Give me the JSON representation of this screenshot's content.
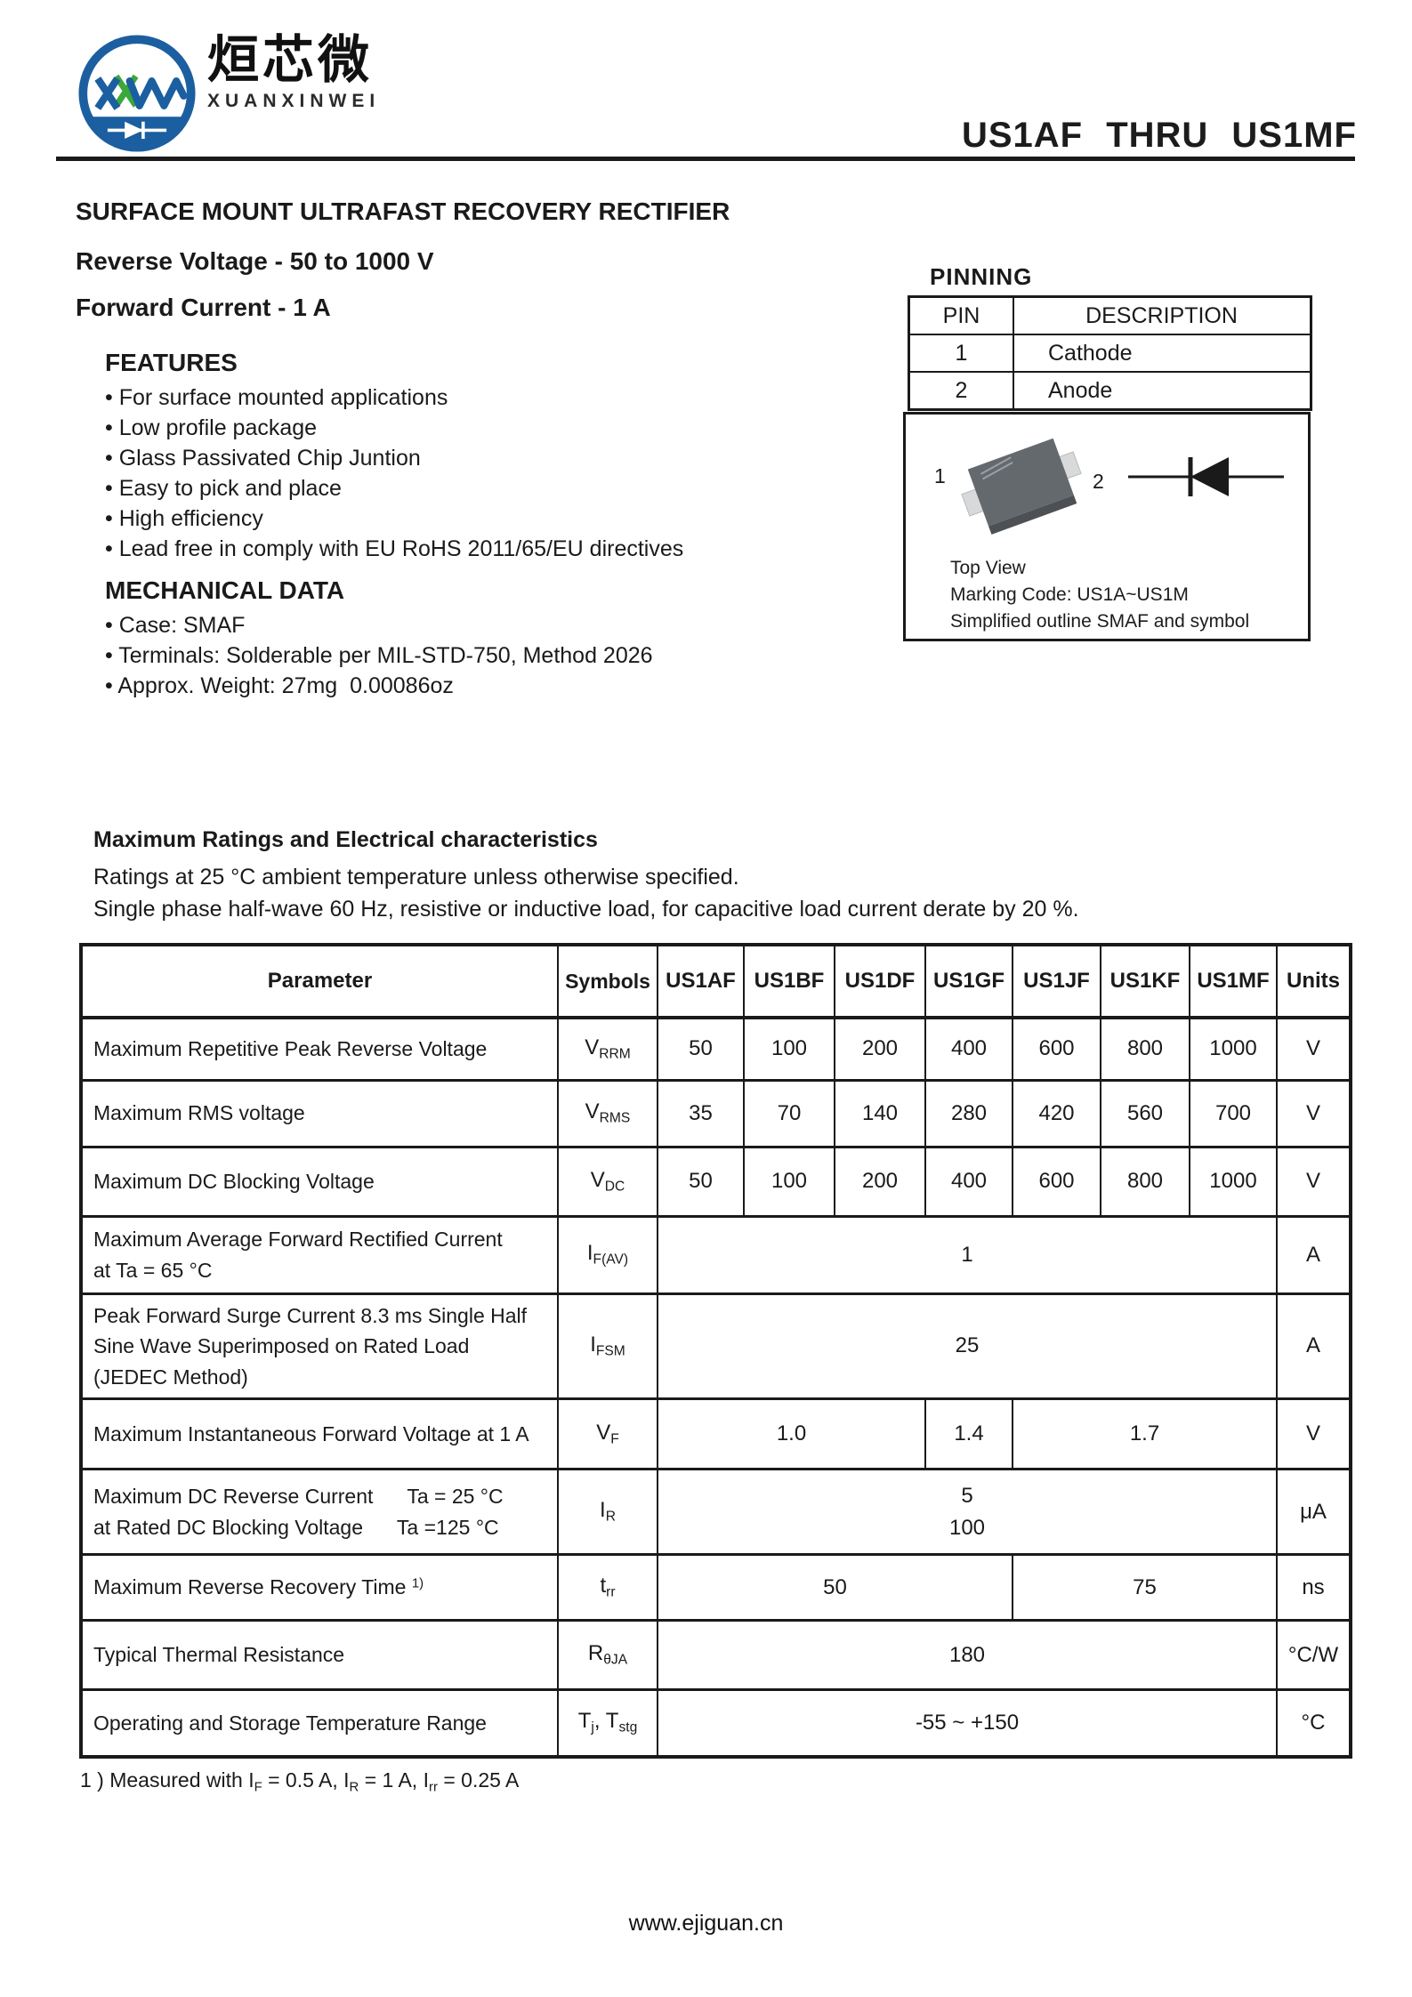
{
  "logo": {
    "cn_name": "烜芯微",
    "en_name": "XUANXINWEI",
    "blue": "#1b5fa0",
    "green": "#3aa83a"
  },
  "header": {
    "part_range": "US1AF THRU US1MF"
  },
  "summary": {
    "product_title": "SURFACE MOUNT ULTRAFAST RECOVERY RECTIFIER",
    "reverse_voltage": "Reverse Voltage - 50 to 1000 V",
    "forward_current": "Forward Current - 1 A"
  },
  "features": {
    "heading": "FEATURES",
    "items": [
      "For surface mounted applications",
      "Low profile package",
      "Glass Passivated Chip Juntion",
      "Easy to pick and place",
      "High efficiency",
      "Lead free in comply with EU RoHS 2011/65/EU directives"
    ]
  },
  "mechanical": {
    "heading": "MECHANICAL DATA",
    "items": [
      "Case: SMAF",
      "Terminals: Solderable per MIL-STD-750, Method 2026",
      "Approx. Weight: 27mg  0.00086oz"
    ]
  },
  "pinning": {
    "heading": "PINNING",
    "columns": [
      "PIN",
      "DESCRIPTION"
    ],
    "rows": [
      [
        "1",
        "Cathode"
      ],
      [
        "2",
        "Anode"
      ]
    ]
  },
  "package_box": {
    "pin1_label": "1",
    "pin2_label": "2",
    "caption": "Top View\nMarking Code: US1A~US1M\nSimplified outline SMAF and symbol"
  },
  "ratings": {
    "heading": "Maximum Ratings and Electrical characteristics",
    "note1": "Ratings at 25 °C ambient temperature unless otherwise specified.",
    "note2": "Single phase half-wave 60 Hz, resistive or inductive load, for capacitive load current derate by 20 %."
  },
  "table": {
    "columns": [
      "Parameter",
      "Symbols",
      "US1AF",
      "US1BF",
      "US1DF",
      "US1GF",
      "US1JF",
      "US1KF",
      "US1MF",
      "Units"
    ],
    "rows": [
      {
        "parameter": "Maximum Repetitive Peak Reverse Voltage",
        "symbol": "V_{RRM}",
        "values": [
          {
            "text": "50",
            "span": 1
          },
          {
            "text": "100",
            "span": 1
          },
          {
            "text": "200",
            "span": 1
          },
          {
            "text": "400",
            "span": 1
          },
          {
            "text": "600",
            "span": 1
          },
          {
            "text": "800",
            "span": 1
          },
          {
            "text": "1000",
            "span": 1
          }
        ],
        "units": "V"
      },
      {
        "parameter": "Maximum RMS voltage",
        "symbol": "V_{RMS}",
        "values": [
          {
            "text": "35",
            "span": 1
          },
          {
            "text": "70",
            "span": 1
          },
          {
            "text": "140",
            "span": 1
          },
          {
            "text": "280",
            "span": 1
          },
          {
            "text": "420",
            "span": 1
          },
          {
            "text": "560",
            "span": 1
          },
          {
            "text": "700",
            "span": 1
          }
        ],
        "units": "V"
      },
      {
        "parameter": "Maximum DC Blocking Voltage",
        "symbol": "V_{DC}",
        "values": [
          {
            "text": "50",
            "span": 1
          },
          {
            "text": "100",
            "span": 1
          },
          {
            "text": "200",
            "span": 1
          },
          {
            "text": "400",
            "span": 1
          },
          {
            "text": "600",
            "span": 1
          },
          {
            "text": "800",
            "span": 1
          },
          {
            "text": "1000",
            "span": 1
          }
        ],
        "units": "V"
      },
      {
        "parameter": "Maximum Average Forward Rectified Current\nat Ta = 65 °C",
        "symbol": "I_{F(AV)}",
        "values": [
          {
            "text": "1",
            "span": 7
          }
        ],
        "units": "A"
      },
      {
        "parameter": "Peak Forward Surge Current 8.3 ms Single Half\nSine Wave Superimposed on Rated Load\n(JEDEC Method)",
        "symbol": "I_{FSM}",
        "values": [
          {
            "text": "25",
            "span": 7
          }
        ],
        "units": "A"
      },
      {
        "parameter": "Maximum Instantaneous Forward Voltage at 1 A",
        "symbol": "V_{F}",
        "values": [
          {
            "text": "1.0",
            "span": 3
          },
          {
            "text": "1.4",
            "span": 1
          },
          {
            "text": "1.7",
            "span": 3
          }
        ],
        "units": "V"
      },
      {
        "parameter": "Maximum DC Reverse Current      Ta = 25 °C\nat Rated DC Blocking Voltage      Ta =125 °C",
        "symbol": "I_{R}",
        "values": [
          {
            "text": "5\n100",
            "span": 7
          }
        ],
        "units": "μA"
      },
      {
        "parameter": "Maximum Reverse Recovery Time ^{1)}",
        "symbol": "t_{rr}",
        "values": [
          {
            "text": "50",
            "span": 4
          },
          {
            "text": "75",
            "span": 3
          }
        ],
        "units": "ns"
      },
      {
        "parameter": "Typical Thermal Resistance",
        "symbol": "R_{θJA}",
        "values": [
          {
            "text": "180",
            "span": 7
          }
        ],
        "units": "°C/W"
      },
      {
        "parameter": "Operating and Storage Temperature Range",
        "symbol": "T_{j}, T_{stg}",
        "values": [
          {
            "text": "-55 ~ +150",
            "span": 7
          }
        ],
        "units": "°C"
      }
    ]
  },
  "footnote": "1 ) Measured with I_{F} = 0.5 A, I_{R} = 1 A, I_{rr} = 0.25 A",
  "footer": {
    "url": "www.ejiguan.cn"
  }
}
